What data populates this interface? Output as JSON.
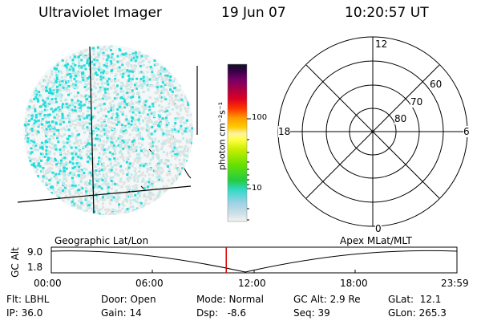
{
  "header": {
    "instrument": "Ultraviolet Imager",
    "date": "19 Jun 07",
    "time": "10:20:57 UT"
  },
  "colorbar": {
    "unit_label": "photon cm⁻²s⁻¹",
    "ticks": [
      "100",
      "10"
    ]
  },
  "polar_plot": {
    "mlt_labels": {
      "top": "12",
      "left": "18",
      "right": "6",
      "bottom": "0"
    },
    "lat_labels": [
      "60",
      "70",
      "80"
    ]
  },
  "timeline": {
    "left_title": "Geographic Lat/Lon",
    "right_title": "Apex MLat/MLT",
    "axis_label": "GC Alt",
    "y_ticks": [
      "9.0",
      "1.8"
    ],
    "x_ticks": [
      "00:00",
      "06:00",
      "12:00",
      "18:00",
      "23:59"
    ],
    "marker_fraction": 0.4312
  },
  "info": {
    "filter": "Flt: LBHL",
    "ip": "IP: 36.0",
    "door": "Door: Open",
    "gain": "Gain: 14",
    "mode": "Mode: Normal",
    "dsp": "Dsp:   -8.6",
    "gc_alt": "GC Alt: 2.9 Re",
    "seq": "Seq: 39",
    "glat": "GLat:  12.1",
    "glon": "GLon: 265.3"
  },
  "colors": {
    "speckle_cyan": "#22dddd",
    "speckle_light": "#bfe9e9",
    "speckle_gray": "#e2e2e2",
    "marker_red": "#dd0000"
  }
}
